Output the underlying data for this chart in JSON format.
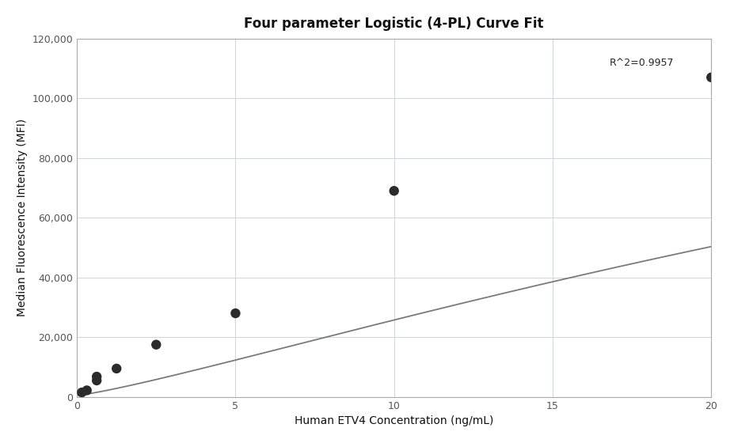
{
  "title": "Four parameter Logistic (4-PL) Curve Fit",
  "xlabel": "Human ETV4 Concentration (ng/mL)",
  "ylabel": "Median Fluorescence Intensity (MFI)",
  "scatter_x": [
    0.156,
    0.313,
    0.625,
    0.625,
    1.25,
    2.5,
    5.0,
    10.0,
    20.0
  ],
  "scatter_y": [
    1500,
    2200,
    5500,
    6800,
    9500,
    17500,
    28000,
    69000,
    107000
  ],
  "dot_color": "#2b2b2b",
  "dot_size": 80,
  "curve_color": "#7a7a7a",
  "r_squared": "R^2=0.9957",
  "r_squared_x": 16.8,
  "r_squared_y": 113500,
  "xlim": [
    0,
    20
  ],
  "ylim": [
    0,
    120000
  ],
  "yticks": [
    0,
    20000,
    40000,
    60000,
    80000,
    100000,
    120000
  ],
  "xticks": [
    0,
    5,
    10,
    15,
    20
  ],
  "title_fontsize": 12,
  "label_fontsize": 10,
  "tick_fontsize": 9,
  "background_color": "#ffffff",
  "grid_color": "#cdd5e0",
  "spine_color": "#aaaaaa"
}
